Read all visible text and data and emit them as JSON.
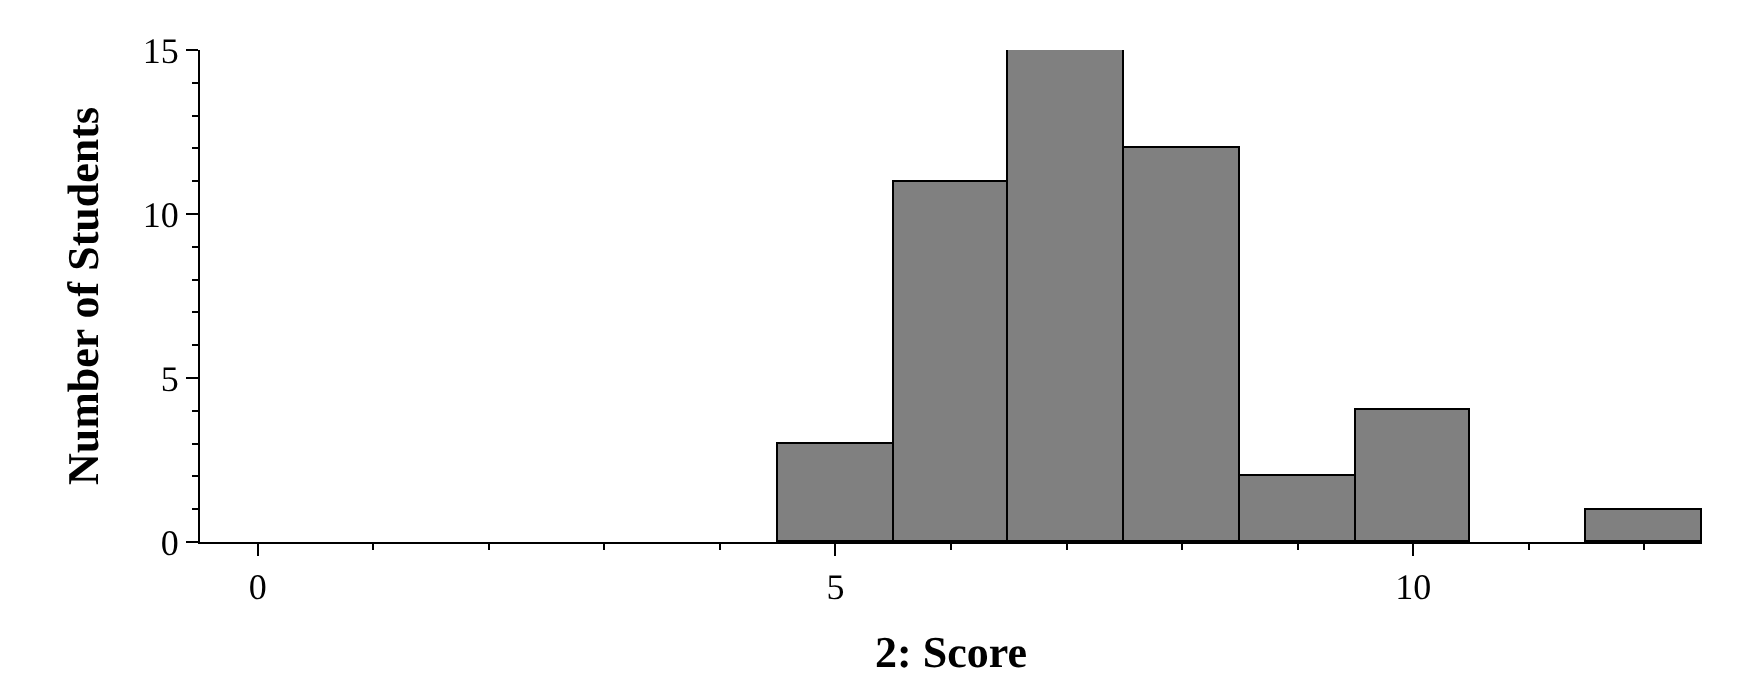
{
  "chart_data": {
    "type": "histogram",
    "xlabel": "2: Score",
    "ylabel": "Number of Students",
    "bins": [
      -0.5,
      0.5,
      1.5,
      2.5,
      3.5,
      4.5,
      5.5,
      6.5,
      7.5,
      8.5,
      9.5,
      10.5,
      11.5,
      12.5
    ],
    "values": [
      0,
      0,
      0,
      0,
      0,
      3,
      11,
      15,
      12,
      2,
      4,
      0,
      1
    ],
    "color": "#808080",
    "xlim": [
      -0.5,
      12.5
    ],
    "xticks": [
      0,
      5,
      10
    ],
    "ylim": [
      0,
      15
    ],
    "yticks": [
      0,
      5,
      10,
      15
    ]
  }
}
